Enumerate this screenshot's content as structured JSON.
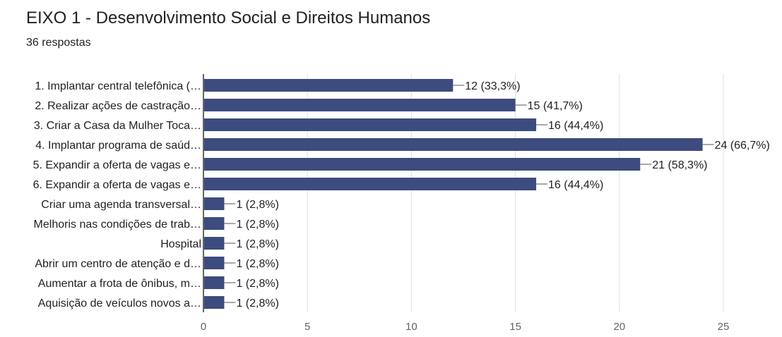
{
  "header": {
    "title": "EIXO 1 - Desenvolvimento Social e Direitos Humanos",
    "subtitle": "36 respostas"
  },
  "chart_data": {
    "type": "bar",
    "orientation": "horizontal",
    "categories": [
      "1. Implantar central telefônica (…",
      "2. Realizar ações de castração…",
      "3. Criar a Casa da Mulher Toca…",
      "4. Implantar programa de saúd…",
      "5. Expandir a oferta de vagas e…",
      "6. Expandir a oferta de vagas e…",
      "Criar uma agenda transversal…",
      "Melhoris nas condições de trab…",
      "Hospital",
      "Abrir um centro de atenção e d…",
      "Aumentar a frota de ônibus, m…",
      "Aquisição de veículos novos a…"
    ],
    "values": [
      12,
      15,
      16,
      24,
      21,
      16,
      1,
      1,
      1,
      1,
      1,
      1
    ],
    "data_labels": [
      "12 (33,3%)",
      "15 (41,7%)",
      "16 (44,4%)",
      "24 (66,7%)",
      "21 (58,3%)",
      "16 (44,4%)",
      "1 (2,8%)",
      "1 (2,8%)",
      "1 (2,8%)",
      "1 (2,8%)",
      "1 (2,8%)",
      "1 (2,8%)"
    ],
    "xticks": [
      "0",
      "5",
      "10",
      "15",
      "20",
      "25"
    ],
    "xlim": [
      0,
      25
    ],
    "bar_color": "#3d4b7e",
    "grid": true
  }
}
